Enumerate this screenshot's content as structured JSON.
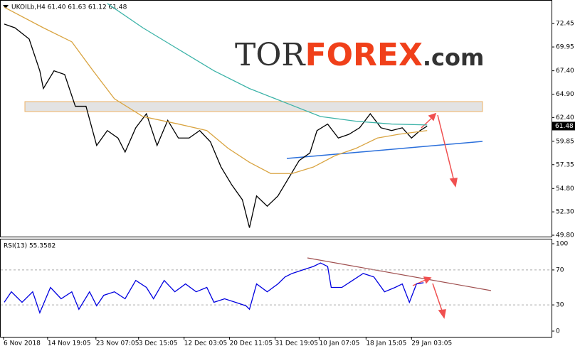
{
  "logo": {
    "parts": [
      "TOR",
      "FOREX",
      ".com"
    ]
  },
  "chart_data": [
    {
      "type": "line",
      "title": "UKOILb,H4  61.40 61.63 61.12 61.48",
      "last_price": 61.48,
      "xlim": [
        0,
        387.5
      ],
      "ylim": [
        49.65,
        74.9
      ],
      "yticks": [
        72.45,
        69.95,
        {
          "value": 67.4,
          "label": "67.40"
        },
        {
          "value": 64.9,
          "label": "64.90"
        },
        {
          "value": 62.4,
          "label": "62.40"
        },
        59.85,
        57.35,
        {
          "value": 54.8,
          "label": "54.80"
        },
        {
          "value": 52.3,
          "label": "52.30"
        },
        {
          "value": 49.8,
          "label": "49.80"
        }
      ],
      "series": [
        {
          "color": "#000000",
          "x": [
            2.5,
            10,
            20,
            27.5,
            30,
            37.5,
            45,
            52.5,
            60,
            67.5,
            75,
            82.5,
            87.5,
            95,
            102.5,
            110,
            117.5,
            125,
            132.5,
            140,
            147.5,
            155,
            162.5,
            170,
            175,
            180,
            187.5,
            195,
            202.5,
            210,
            217.5,
            222.5,
            230,
            237.5,
            245,
            252.5,
            260,
            267.5,
            275,
            282.5,
            289,
            295,
            300
          ],
          "values": [
            72.4,
            72,
            70.8,
            67.4,
            65.5,
            67.4,
            67,
            63.6,
            63.6,
            59.4,
            61,
            60.2,
            58.7,
            61.3,
            62.8,
            59.4,
            62.1,
            60.2,
            60.2,
            61,
            59.8,
            57.1,
            55.2,
            53.6,
            50.6,
            54,
            52.9,
            54,
            55.9,
            57.8,
            58.6,
            61,
            61.7,
            60.2,
            60.6,
            61.3,
            62.8,
            61.3,
            61,
            61.3,
            60.2,
            61,
            61.48
          ]
        },
        {
          "color": "#d9a441",
          "x": [
            2.5,
            30,
            50,
            65,
            80,
            100,
            125,
            145,
            160,
            175,
            190,
            205,
            220,
            235,
            250,
            265,
            280,
            300
          ],
          "values": [
            74.2,
            72,
            70.5,
            67.4,
            64.4,
            62.5,
            61.7,
            61,
            59.1,
            57.6,
            56.4,
            56.4,
            57.1,
            58.3,
            59.1,
            60.2,
            60.6,
            61
          ]
        },
        {
          "color": "#3cb3a8",
          "x": [
            75,
            100,
            125,
            150,
            175,
            200,
            225,
            250,
            275,
            300
          ],
          "values": [
            74.6,
            72,
            69.7,
            67.4,
            65.5,
            64,
            62.5,
            62,
            61.7,
            61.6
          ]
        }
      ]
    },
    {
      "type": "line",
      "title": "RSI(13) 55.3582",
      "xlim": [
        0,
        387.5
      ],
      "ylim": [
        -6.5,
        104.9
      ],
      "yticks": [
        100,
        70,
        30,
        0
      ],
      "levels": [
        70,
        30
      ],
      "xticks": [
        {
          "value": 2,
          "label": "6 Nov 2018"
        },
        {
          "value": 33,
          "label": "14 Nov 19:05"
        },
        {
          "value": 67,
          "label": "23 Nov 07:05"
        },
        {
          "value": 97,
          "label": "3 Dec 15:05"
        },
        {
          "value": 129,
          "label": "12 Dec 03:05"
        },
        {
          "value": 161,
          "label": "20 Dec 11:05"
        },
        {
          "value": 193,
          "label": "31 Dec 19:05"
        },
        {
          "value": 224,
          "label": "10 Jan 07:05"
        },
        {
          "value": 257,
          "label": "18 Jan 15:05"
        },
        {
          "value": 289,
          "label": "29 Jan 03:05"
        }
      ],
      "series": [
        {
          "color": "#0000e0",
          "x": [
            2.5,
            7.5,
            15,
            22.5,
            27.5,
            35,
            42.5,
            50,
            55,
            62.5,
            67.5,
            72.5,
            80,
            87.5,
            95,
            102.5,
            107.5,
            115,
            122.5,
            130,
            137.5,
            145,
            150,
            157.5,
            165,
            172.5,
            175,
            180,
            187.5,
            195,
            200,
            205,
            212.5,
            220,
            225,
            230,
            232.5,
            240,
            247.5,
            255,
            262.5,
            270,
            277.5,
            282.5,
            287.5,
            292.5,
            297.5
          ],
          "values": [
            33,
            45,
            33,
            45,
            21,
            50,
            37,
            45,
            25,
            45,
            29,
            41,
            45,
            37,
            58,
            50,
            37,
            58,
            45,
            54,
            45,
            50,
            33,
            37,
            33,
            29,
            25,
            54,
            45,
            54,
            62,
            66,
            70,
            74,
            78,
            74,
            50,
            50,
            58,
            66,
            62,
            45,
            50,
            54,
            33,
            54,
            55.4
          ]
        }
      ]
    }
  ]
}
